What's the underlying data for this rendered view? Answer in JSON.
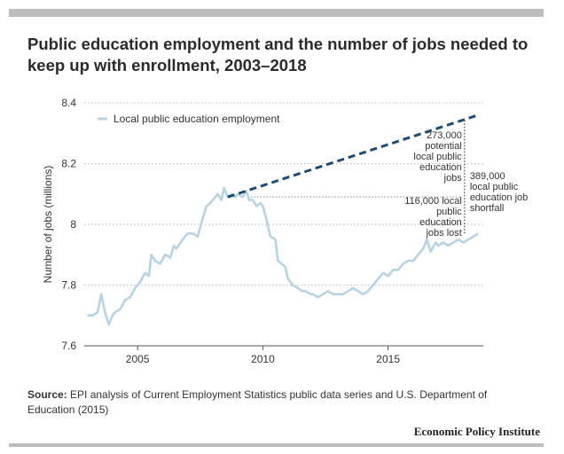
{
  "title": "Public education employment and the number of jobs needed to keep up with enrollment, 2003–2018",
  "source_label": "Source:",
  "source_text": "EPI analysis of Current Employment Statistics  public data series and U.S. Department of Education (2015)",
  "brand": "Economic Policy Institute",
  "colors": {
    "series": "#b7d3e2",
    "projection": "#1e4b6e",
    "text": "#333333",
    "grid": "#bdbdbd"
  },
  "chart_data": {
    "type": "line",
    "title": "Public education employment and the number of jobs needed to keep up with enrollment, 2003–2018",
    "ylabel": "Number of jobs (millions)",
    "xlabel": "",
    "ylim": [
      7.6,
      8.4
    ],
    "xlim": [
      2002.8,
      2018.8
    ],
    "yticks": [
      7.6,
      7.8,
      8,
      8.2,
      8.4
    ],
    "ytick_labels": [
      "7.6",
      "7.8",
      "8",
      "8.2",
      "8.4"
    ],
    "xticks": [
      2005,
      2010,
      2015
    ],
    "xtick_labels": [
      "2005",
      "2010",
      "2015"
    ],
    "legend": {
      "placement": "top-left",
      "label": "Local public education employment"
    },
    "series": [
      {
        "name": "Local public education employment",
        "style": "solid",
        "x": [
          2003.0,
          2003.2,
          2003.4,
          2003.55,
          2003.7,
          2003.85,
          2004.0,
          2004.1,
          2004.3,
          2004.5,
          2004.7,
          2004.9,
          2005.1,
          2005.3,
          2005.45,
          2005.55,
          2005.7,
          2005.9,
          2006.1,
          2006.3,
          2006.45,
          2006.55,
          2006.8,
          2007.0,
          2007.2,
          2007.4,
          2007.6,
          2007.75,
          2007.9,
          2008.0,
          2008.2,
          2008.35,
          2008.45,
          2008.6,
          2008.75,
          2008.9,
          2009.0,
          2009.2,
          2009.35,
          2009.45,
          2009.6,
          2009.75,
          2009.9,
          2010.0,
          2010.1,
          2010.3,
          2010.5,
          2010.6,
          2010.75,
          2010.9,
          2011.0,
          2011.2,
          2011.4,
          2011.55,
          2011.7,
          2011.9,
          2012.0,
          2012.2,
          2012.4,
          2012.6,
          2012.8,
          2013.0,
          2013.2,
          2013.4,
          2013.6,
          2013.8,
          2014.0,
          2014.2,
          2014.4,
          2014.6,
          2014.8,
          2015.0,
          2015.2,
          2015.4,
          2015.6,
          2015.8,
          2016.0,
          2016.2,
          2016.4,
          2016.55,
          2016.7,
          2016.9,
          2017.0,
          2017.2,
          2017.4,
          2017.6,
          2017.8,
          2018.0,
          2018.2,
          2018.4,
          2018.6
        ],
        "y": [
          7.7,
          7.7,
          7.71,
          7.77,
          7.71,
          7.67,
          7.7,
          7.71,
          7.72,
          7.75,
          7.76,
          7.79,
          7.81,
          7.84,
          7.83,
          7.9,
          7.88,
          7.87,
          7.9,
          7.89,
          7.93,
          7.92,
          7.95,
          7.97,
          7.97,
          7.96,
          8.02,
          8.06,
          8.07,
          8.08,
          8.1,
          8.08,
          8.12,
          8.09,
          8.1,
          8.09,
          8.1,
          8.09,
          8.11,
          8.08,
          8.08,
          8.06,
          8.07,
          8.06,
          8.03,
          7.96,
          7.95,
          7.88,
          7.87,
          7.86,
          7.82,
          7.8,
          7.79,
          7.78,
          7.78,
          7.77,
          7.77,
          7.76,
          7.77,
          7.78,
          7.77,
          7.77,
          7.77,
          7.78,
          7.79,
          7.78,
          7.77,
          7.78,
          7.8,
          7.82,
          7.84,
          7.83,
          7.85,
          7.85,
          7.87,
          7.88,
          7.88,
          7.9,
          7.92,
          7.95,
          7.91,
          7.94,
          7.93,
          7.94,
          7.93,
          7.94,
          7.95,
          7.94,
          7.95,
          7.96,
          7.97
        ]
      },
      {
        "name": "Jobs needed to keep up with enrollment",
        "style": "dashed",
        "x": [
          2008.6,
          2018.6
        ],
        "y": [
          8.09,
          8.36
        ]
      }
    ],
    "annotations": [
      {
        "id": "potential",
        "lines": [
          "273,000",
          "potential",
          "local public",
          "education",
          "jobs"
        ],
        "align": "right"
      },
      {
        "id": "lost",
        "lines": [
          "116,000 local",
          "public",
          "education",
          "jobs lost"
        ],
        "align": "right"
      },
      {
        "id": "shortfall",
        "lines": [
          "389,000",
          "local public",
          "education job",
          "shortfall"
        ],
        "align": "left"
      }
    ]
  }
}
